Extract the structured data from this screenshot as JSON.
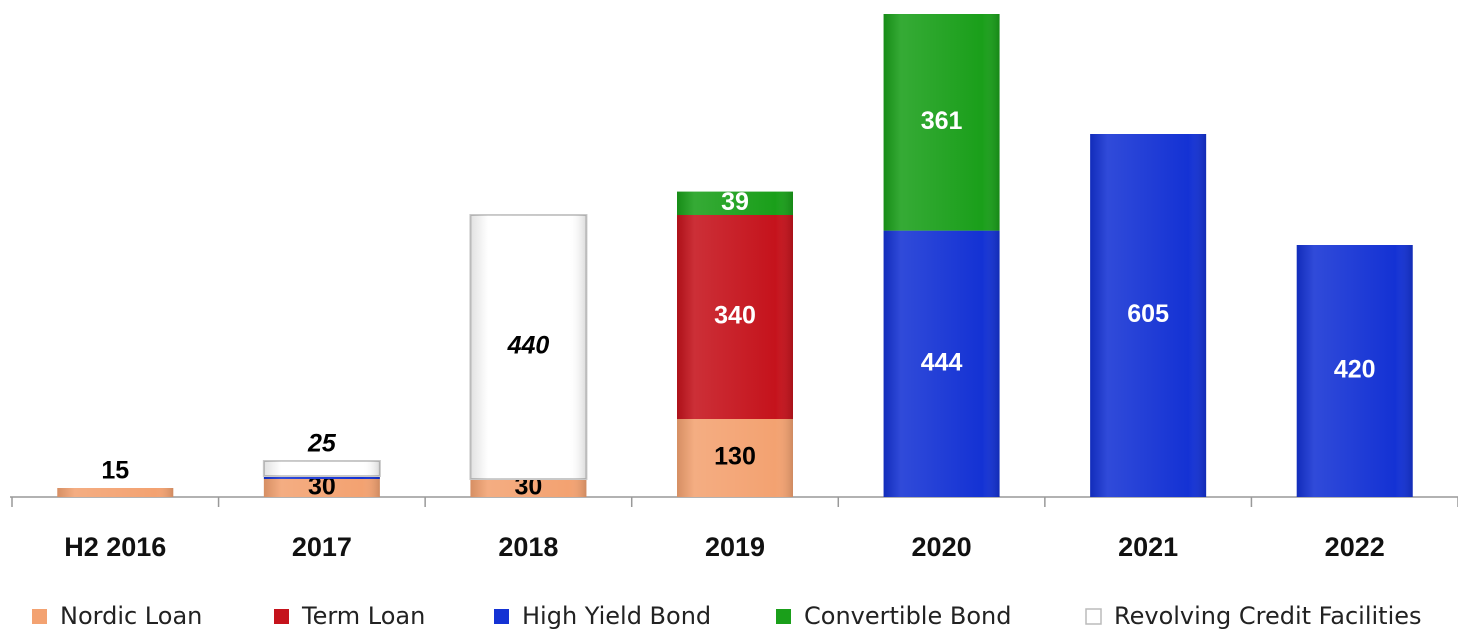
{
  "chart_data": {
    "type": "stacked_bar",
    "categories": [
      "H2 2016",
      "2017",
      "2018",
      "2019",
      "2020",
      "2021",
      "2022"
    ],
    "series": [
      {
        "name": "Nordic Loan",
        "color": "#f3a271",
        "label_color": "#000000",
        "values": [
          15,
          30,
          30,
          130,
          null,
          null,
          null
        ]
      },
      {
        "name": "Term Loan",
        "color": "#c5131c",
        "label_color": "#ffffff",
        "values": [
          null,
          null,
          null,
          340,
          null,
          null,
          null
        ]
      },
      {
        "name": "High Yield Bond",
        "color": "#1432d4",
        "label_color": "#ffffff",
        "values": [
          null,
          5,
          null,
          null,
          444,
          605,
          420
        ],
        "value_labels": [
          null,
          null,
          null,
          null,
          "444",
          "605",
          "420"
        ]
      },
      {
        "name": "Convertible Bond",
        "color": "#1a9f1a",
        "label_color": "#ffffff",
        "values": [
          null,
          null,
          null,
          39,
          361,
          null,
          null
        ]
      },
      {
        "name": "Revolving Credit Facilities",
        "color": "#ffffff",
        "label_color": "#000000",
        "label_style": "italic",
        "values": [
          null,
          25,
          440,
          null,
          null,
          null,
          null
        ]
      }
    ]
  }
}
